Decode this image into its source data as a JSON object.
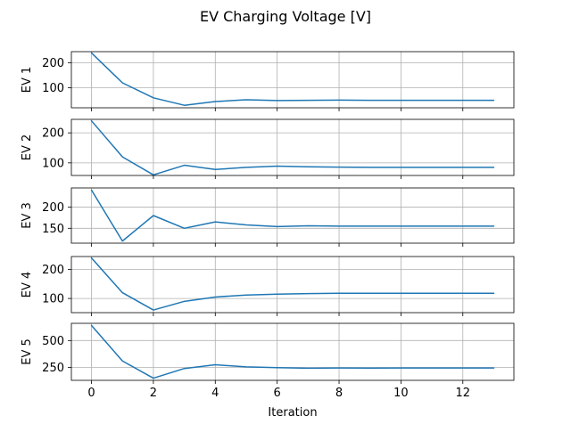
{
  "chart_data": {
    "type": "line",
    "title": "EV Charging Voltage [V]",
    "xlabel": "Iteration",
    "x": [
      0,
      1,
      2,
      3,
      4,
      5,
      6,
      7,
      8,
      9,
      10,
      11,
      12,
      13
    ],
    "xlim": [
      -0.65,
      13.65
    ],
    "xticks": [
      0,
      2,
      4,
      6,
      8,
      10,
      12
    ],
    "grid": true,
    "line_color": "#1f77b4",
    "subplots": [
      {
        "ylabel": "EV 1",
        "ylim": [
          20,
          245
        ],
        "yticks": [
          100,
          200
        ],
        "values": [
          240,
          120,
          60,
          30,
          45,
          52,
          49,
          50,
          51,
          50,
          50,
          50,
          50,
          50
        ]
      },
      {
        "ylabel": "EV 2",
        "ylim": [
          58,
          245
        ],
        "yticks": [
          100,
          200
        ],
        "values": [
          240,
          120,
          60,
          92,
          78,
          85,
          89,
          87,
          86,
          85,
          85,
          85,
          85,
          85
        ]
      },
      {
        "ylabel": "EV 3",
        "ylim": [
          115,
          245
        ],
        "yticks": [
          150,
          200
        ],
        "values": [
          240,
          120,
          180,
          150,
          165,
          158,
          154,
          156,
          155,
          155,
          155,
          155,
          155,
          155
        ]
      },
      {
        "ylabel": "EV 4",
        "ylim": [
          51,
          245
        ],
        "yticks": [
          100,
          200
        ],
        "values": [
          240,
          120,
          60,
          90,
          105,
          112,
          115,
          117,
          118,
          118,
          118,
          118,
          118,
          118
        ]
      },
      {
        "ylabel": "EV 5",
        "ylim": [
          130,
          660
        ],
        "yticks": [
          250,
          500
        ],
        "values": [
          640,
          310,
          150,
          240,
          275,
          255,
          248,
          243,
          245,
          244,
          245,
          245,
          245,
          245
        ]
      }
    ]
  }
}
